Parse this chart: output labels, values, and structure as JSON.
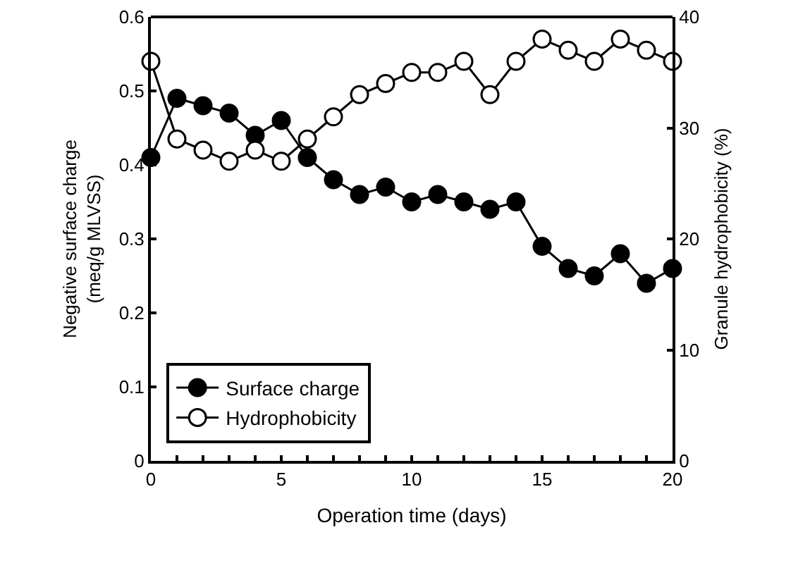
{
  "chart_data": {
    "type": "line",
    "xlabel": "Operation time (days)",
    "ylabel": "Negative surface charge\n(meq/g MLVSS)",
    "y2label": "Granule hydrophobicity (%)",
    "x": [
      0,
      1,
      2,
      3,
      4,
      5,
      6,
      7,
      8,
      9,
      10,
      11,
      12,
      13,
      14,
      15,
      16,
      17,
      18,
      19,
      20
    ],
    "series": [
      {
        "name": "Surface charge",
        "color": "#000000",
        "values": [
          0.41,
          0.49,
          0.48,
          0.47,
          0.44,
          0.46,
          0.41,
          0.38,
          0.36,
          0.37,
          0.35,
          0.36,
          0.35,
          0.34,
          0.35,
          0.29,
          0.26,
          0.25,
          0.28,
          0.24,
          0.26
        ]
      },
      {
        "name": "Hydrophobicity",
        "color": "#ffffff",
        "axis": "y2",
        "values": [
          36,
          29,
          28,
          27,
          28,
          27,
          29,
          31,
          33,
          34,
          35,
          35,
          36,
          33,
          36,
          38,
          37,
          36,
          38,
          37,
          36
        ]
      }
    ],
    "xlim": [
      0,
      20
    ],
    "xticks": [
      0,
      {
        "value": 1,
        "label": null
      },
      {
        "value": 2,
        "label": null
      },
      {
        "value": 3,
        "label": null
      },
      {
        "value": 4,
        "label": null
      },
      5,
      {
        "value": 6,
        "label": null
      },
      {
        "value": 7,
        "label": null
      },
      {
        "value": 8,
        "label": null
      },
      {
        "value": 9,
        "label": null
      },
      10,
      {
        "value": 11,
        "label": null
      },
      {
        "value": 12,
        "label": null
      },
      {
        "value": 13,
        "label": null
      },
      {
        "value": 14,
        "label": null
      },
      15,
      {
        "value": 16,
        "label": null
      },
      {
        "value": 17,
        "label": null
      },
      {
        "value": 18,
        "label": null
      },
      {
        "value": 19,
        "label": null
      },
      20
    ],
    "ylim": [
      0,
      0.6
    ],
    "yticks": [
      0,
      0.1,
      0.2,
      0.3,
      0.4,
      0.5,
      0.6
    ],
    "y2lim": [
      0,
      40
    ],
    "y2ticks": [
      0,
      10,
      20,
      30,
      40
    ],
    "grid": false,
    "legend": "bottom left",
    "marker": "circle",
    "line_style": "solid"
  }
}
